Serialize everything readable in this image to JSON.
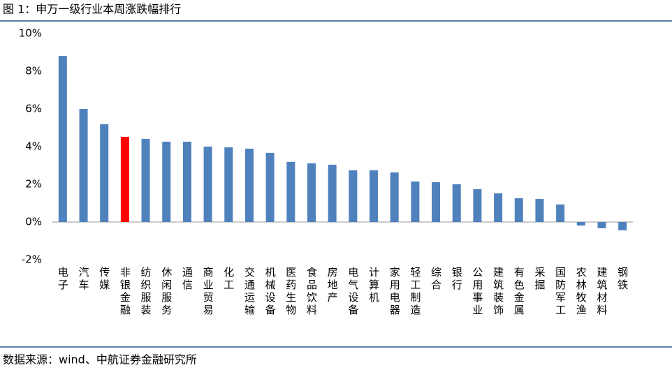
{
  "chart_data": {
    "type": "bar",
    "title": "图 1：申万一级行业本周涨跌幅排行",
    "source": "数据来源：wind、中航证券金融研究所",
    "categories": [
      "电子",
      "汽车",
      "传媒",
      "非银金融",
      "纺织服装",
      "休闲服务",
      "通信",
      "商业贸易",
      "化工",
      "交通运输",
      "机械设备",
      "医药生物",
      "食品饮料",
      "房地产",
      "电气设备",
      "计算机",
      "家用电器",
      "轻工制造",
      "综合",
      "银行",
      "公用事业",
      "建筑装饰",
      "有色金属",
      "采掘",
      "国防军工",
      "农林牧渔",
      "建筑材料",
      "钢铁"
    ],
    "values": [
      8.81,
      6.0,
      5.19,
      4.52,
      4.41,
      4.26,
      4.26,
      4.0,
      3.96,
      3.89,
      3.67,
      3.19,
      3.11,
      3.04,
      2.74,
      2.74,
      2.63,
      2.15,
      2.11,
      2.0,
      1.74,
      1.52,
      1.26,
      1.22,
      0.93,
      -0.19,
      -0.33,
      -0.44
    ],
    "colors": [
      "#4f81bd",
      "#4f81bd",
      "#4f81bd",
      "#ff0000",
      "#4f81bd",
      "#4f81bd",
      "#4f81bd",
      "#4f81bd",
      "#4f81bd",
      "#4f81bd",
      "#4f81bd",
      "#4f81bd",
      "#4f81bd",
      "#4f81bd",
      "#4f81bd",
      "#4f81bd",
      "#4f81bd",
      "#4f81bd",
      "#4f81bd",
      "#4f81bd",
      "#4f81bd",
      "#4f81bd",
      "#4f81bd",
      "#4f81bd",
      "#4f81bd",
      "#4f81bd",
      "#4f81bd",
      "#4f81bd"
    ],
    "ylim": [
      -2,
      10
    ],
    "yticks": [
      {
        "value": -2,
        "label": "-2%"
      },
      {
        "value": 0,
        "label": "0%"
      },
      {
        "value": 2,
        "label": "2%"
      },
      {
        "value": 4,
        "label": "4%"
      },
      {
        "value": 6,
        "label": "6%"
      },
      {
        "value": 8,
        "label": "8%"
      },
      {
        "value": 10,
        "label": "10%"
      }
    ],
    "grid": false
  }
}
